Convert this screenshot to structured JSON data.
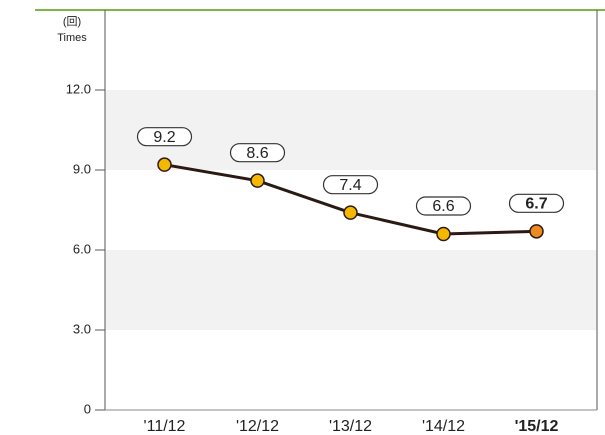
{
  "chart_data": {
    "type": "line",
    "y_unit_label": "(回)",
    "y_axis_label": "Times",
    "categories": [
      "'11/12",
      "'12/12",
      "'13/12",
      "'14/12",
      "'15/12"
    ],
    "values": [
      9.2,
      8.6,
      7.4,
      6.6,
      6.7
    ],
    "color": "#2b1a14",
    "marker_color": "#f5b800",
    "highlight_color": "#ee8a1f",
    "ylim": [
      0,
      15
    ],
    "yticks": [
      0,
      {
        "value": 3,
        "label": "3.0"
      },
      {
        "value": 6,
        "label": "6.0"
      },
      {
        "value": 9,
        "label": "9.0"
      },
      {
        "value": 12,
        "label": "12.0"
      }
    ],
    "band_color": "#f2f2f2"
  }
}
